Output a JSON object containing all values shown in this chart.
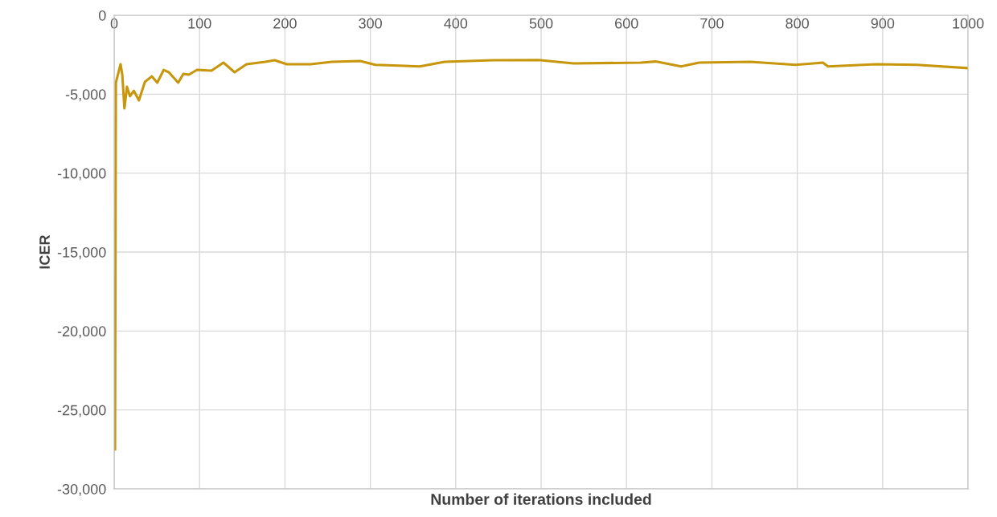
{
  "chart_data": {
    "type": "line",
    "xlabel": "Number of iterations included",
    "ylabel": "ICER",
    "x": [
      1,
      2,
      4.4,
      7.5,
      9.5,
      12,
      15,
      18.5,
      23,
      29,
      36,
      44,
      50.5,
      58,
      64,
      75,
      81,
      87.5,
      97,
      114,
      128,
      141,
      155,
      177,
      188,
      202,
      230,
      255,
      288,
      306,
      358,
      387,
      444,
      497,
      538,
      617,
      634,
      664,
      685,
      745,
      798,
      830,
      836,
      893,
      940,
      1000
    ],
    "series": [
      {
        "color": "#c8960c",
        "values": [
          -27500,
          -4270,
          -3760,
          -3100,
          -3760,
          -5900,
          -4530,
          -5130,
          -4780,
          -5390,
          -4220,
          -3870,
          -4270,
          -3460,
          -3610,
          -4270,
          -3710,
          -3760,
          -3460,
          -3510,
          -3000,
          -3610,
          -3100,
          -2950,
          -2850,
          -3100,
          -3100,
          -2950,
          -2900,
          -3140,
          -3240,
          -2950,
          -2850,
          -2830,
          -3050,
          -3000,
          -2930,
          -3240,
          -3000,
          -2950,
          -3140,
          -3000,
          -3240,
          -3100,
          -3140,
          -3350
        ]
      }
    ],
    "xlim": [
      0,
      1000
    ],
    "xticks": [
      0,
      100,
      200,
      300,
      400,
      500,
      600,
      700,
      800,
      900,
      1000
    ],
    "ylim": [
      -30000,
      0
    ],
    "yticks": [
      {
        "value": 0,
        "label": "0"
      },
      {
        "value": -5000,
        "label": "-5,000"
      },
      {
        "value": -10000,
        "label": "-10,000"
      },
      {
        "value": -15000,
        "label": "-15,000"
      },
      {
        "value": -20000,
        "label": "-20,000"
      },
      {
        "value": -25000,
        "label": "-25,000"
      },
      {
        "value": -30000,
        "label": "-30,000"
      }
    ],
    "grid": true,
    "marker": "none",
    "line_style": "solid",
    "legend": false
  }
}
